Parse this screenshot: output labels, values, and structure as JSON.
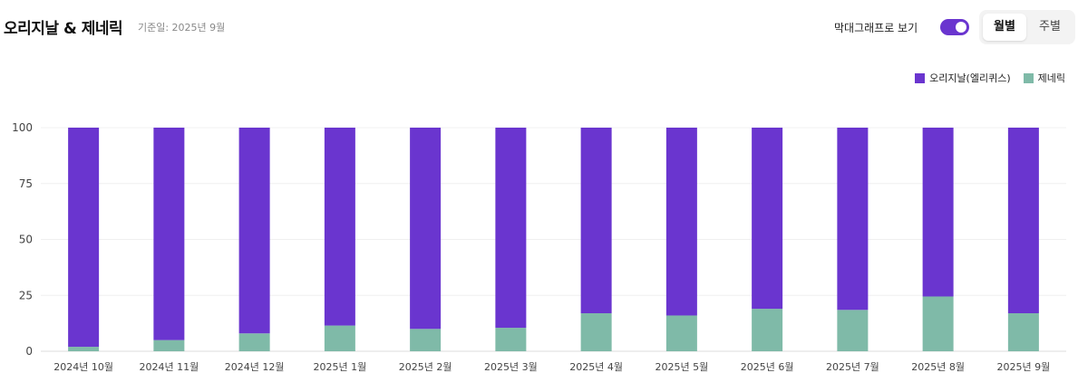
{
  "header": {
    "title": "오리지날 & 제네릭",
    "subtitle": "기준일: 2025년 9월",
    "toggle_label": "막대그래프로 보기",
    "toggle_on": true,
    "tabs": [
      {
        "label": "월별",
        "active": true
      },
      {
        "label": "주별",
        "active": false
      }
    ]
  },
  "colors": {
    "original": "#6a35cf",
    "generic": "#7fbaa8"
  },
  "chart_data": {
    "type": "bar",
    "stacked": true,
    "categories": [
      "2024년 10월",
      "2024년 11월",
      "2024년 12월",
      "2025년 1월",
      "2025년 2월",
      "2025년 3월",
      "2025년 4월",
      "2025년 5월",
      "2025년 6월",
      "2025년 7월",
      "2025년 8월",
      "2025년 9월"
    ],
    "series": [
      {
        "name": "오리지날(엘리퀴스)",
        "color": "#6a35cf",
        "values": [
          98,
          95,
          92,
          88.5,
          90,
          89.5,
          83,
          84,
          81,
          81.5,
          75.5,
          83
        ]
      },
      {
        "name": "제네릭",
        "color": "#7fbaa8",
        "values": [
          2,
          5,
          8,
          11.5,
          10,
          10.5,
          17,
          16,
          19,
          18.5,
          24.5,
          17
        ]
      }
    ],
    "yticks": [
      0,
      25,
      50,
      75,
      100
    ],
    "ylim": [
      0,
      100
    ],
    "grid": true,
    "legend_position": "top-right"
  }
}
